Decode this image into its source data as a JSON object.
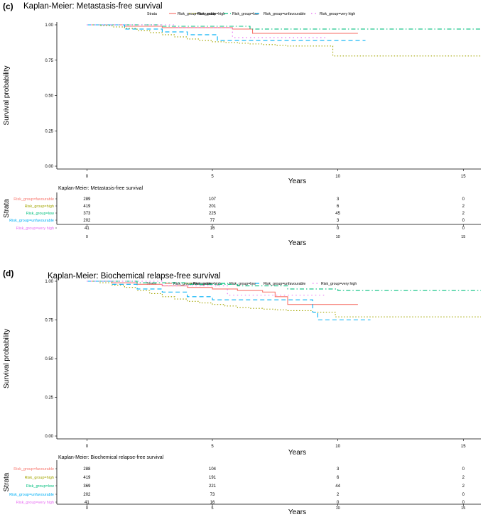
{
  "x_axis_title": "Years",
  "y_axis_title": "Survival probability",
  "risk_table_y_title": "Strata",
  "legend_title": "Strata",
  "strata": [
    {
      "name": "Risk_group=favourable",
      "color": "#F8766D",
      "dash": ""
    },
    {
      "name": "Risk_group=high",
      "color": "#A3A500",
      "dash": "1.5,2.5"
    },
    {
      "name": "Risk_group=low",
      "color": "#00BF7D",
      "dash": "6,3,1.5,3"
    },
    {
      "name": "Risk_group=unfavourable",
      "color": "#00B0F6",
      "dash": "6,4"
    },
    {
      "name": "Risk_group=very high",
      "color": "#E76BF3",
      "dash": "1.5,4"
    }
  ],
  "chart_data": [
    {
      "type": "line",
      "step": true,
      "panel_label": "(c)",
      "title": "Kaplan-Meier: Metastasis-free survival",
      "xlabel": "Years",
      "ylabel": "Survival probability",
      "xlim": [
        -1.2,
        15.7
      ],
      "ylim": [
        0,
        1
      ],
      "x_ticks": [
        0,
        5,
        10,
        15
      ],
      "y_ticks": [
        0.0,
        0.25,
        0.5,
        0.75,
        1.0
      ],
      "y_tick_labels": [
        "0.00",
        "0.25",
        "0.50",
        "0.75",
        "1.00"
      ],
      "legend": "top",
      "series": [
        {
          "name": "Risk_group=favourable",
          "x": [
            0,
            1.5,
            3,
            5.8,
            6.6,
            10.8
          ],
          "y": [
            1.0,
            0.99,
            0.98,
            0.97,
            0.94,
            0.94
          ]
        },
        {
          "name": "Risk_group=high",
          "x": [
            0,
            0.5,
            1,
            1.5,
            2,
            2.5,
            3,
            3.5,
            4,
            4.5,
            5,
            5.5,
            6,
            6.5,
            7,
            7.5,
            8,
            9.8,
            15.7
          ],
          "y": [
            1.0,
            0.995,
            0.985,
            0.975,
            0.96,
            0.945,
            0.93,
            0.915,
            0.9,
            0.89,
            0.88,
            0.875,
            0.87,
            0.865,
            0.86,
            0.855,
            0.85,
            0.78,
            0.78
          ]
        },
        {
          "name": "Risk_group=low",
          "x": [
            0,
            3,
            6.5,
            15.7
          ],
          "y": [
            1.0,
            0.99,
            0.97,
            0.97
          ]
        },
        {
          "name": "Risk_group=unfavourable",
          "x": [
            0,
            1.5,
            3,
            4,
            5.2,
            11.1
          ],
          "y": [
            1.0,
            0.97,
            0.95,
            0.93,
            0.89,
            0.89
          ]
        },
        {
          "name": "Risk_group=very high",
          "x": [
            0,
            3.5,
            5.8,
            9.5
          ],
          "y": [
            1.0,
            0.98,
            0.91,
            0.91
          ]
        }
      ],
      "risk_table": {
        "title": "Kaplan-Meier: Metastasis-free survival",
        "times": [
          0,
          5,
          10,
          15
        ],
        "rows": [
          {
            "name": "Risk_group=favourable",
            "values": [
              "289",
              "107",
              "3",
              "0"
            ]
          },
          {
            "name": "Risk_group=high",
            "values": [
              "419",
              "201",
              "6",
              "2"
            ]
          },
          {
            "name": "Risk_group=low",
            "values": [
              "373",
              "225",
              "45",
              "2"
            ]
          },
          {
            "name": "Risk_group=unfavourable",
            "values": [
              "202",
              "77",
              "3",
              "0"
            ]
          },
          {
            "name": "Risk_group=very high",
            "values": [
              "41",
              "16",
              "0",
              "0"
            ]
          }
        ]
      }
    },
    {
      "type": "line",
      "step": true,
      "panel_label": "(d)",
      "title": "Kaplan-Meier: Biochemical relapse-free survival",
      "xlabel": "Years",
      "ylabel": "Survival probability",
      "xlim": [
        -1.2,
        15.7
      ],
      "ylim": [
        0,
        1
      ],
      "x_ticks": [
        0,
        5,
        10,
        15
      ],
      "y_ticks": [
        0.0,
        0.25,
        0.5,
        0.75,
        1.0
      ],
      "y_tick_labels": [
        "0.00",
        "0.25",
        "0.50",
        "0.75",
        "1.00"
      ],
      "legend": "top",
      "series": [
        {
          "name": "Risk_group=favourable",
          "x": [
            0,
            1,
            2,
            3,
            4,
            5,
            6,
            7,
            7.5,
            8,
            10.8
          ],
          "y": [
            1.0,
            0.99,
            0.98,
            0.97,
            0.96,
            0.95,
            0.94,
            0.93,
            0.9,
            0.85,
            0.85
          ]
        },
        {
          "name": "Risk_group=high",
          "x": [
            0,
            0.5,
            1,
            1.5,
            2,
            2.5,
            3,
            3.5,
            4,
            4.5,
            5,
            5.5,
            6,
            6.5,
            7,
            7.5,
            8,
            9,
            9.9,
            15.7
          ],
          "y": [
            1.0,
            0.99,
            0.975,
            0.96,
            0.94,
            0.92,
            0.9,
            0.885,
            0.87,
            0.86,
            0.85,
            0.84,
            0.83,
            0.825,
            0.82,
            0.815,
            0.81,
            0.8,
            0.77,
            0.77
          ]
        },
        {
          "name": "Risk_group=low",
          "x": [
            0,
            2,
            4,
            6,
            8,
            10,
            15.7
          ],
          "y": [
            1.0,
            0.99,
            0.98,
            0.97,
            0.95,
            0.94,
            0.94
          ]
        },
        {
          "name": "Risk_group=unfavourable",
          "x": [
            0,
            1,
            2,
            3,
            4,
            5,
            9,
            9.2,
            11.3
          ],
          "y": [
            1.0,
            0.98,
            0.95,
            0.93,
            0.9,
            0.88,
            0.8,
            0.75,
            0.75
          ]
        },
        {
          "name": "Risk_group=very high",
          "x": [
            0,
            3,
            5.6,
            9.5
          ],
          "y": [
            1.0,
            0.97,
            0.91,
            0.91
          ]
        }
      ],
      "risk_table": {
        "title": "Kaplan-Meier: Biochemical relapse-free survival",
        "times": [
          0,
          5,
          10,
          15
        ],
        "rows": [
          {
            "name": "Risk_group=favourable",
            "values": [
              "288",
              "104",
              "3",
              "0"
            ]
          },
          {
            "name": "Risk_group=high",
            "values": [
              "419",
              "191",
              "6",
              "2"
            ]
          },
          {
            "name": "Risk_group=low",
            "values": [
              "369",
              "221",
              "44",
              "2"
            ]
          },
          {
            "name": "Risk_group=unfavourable",
            "values": [
              "202",
              "73",
              "2",
              "0"
            ]
          },
          {
            "name": "Risk_group=very high",
            "values": [
              "41",
              "16",
              "0",
              "0"
            ]
          }
        ]
      }
    }
  ]
}
